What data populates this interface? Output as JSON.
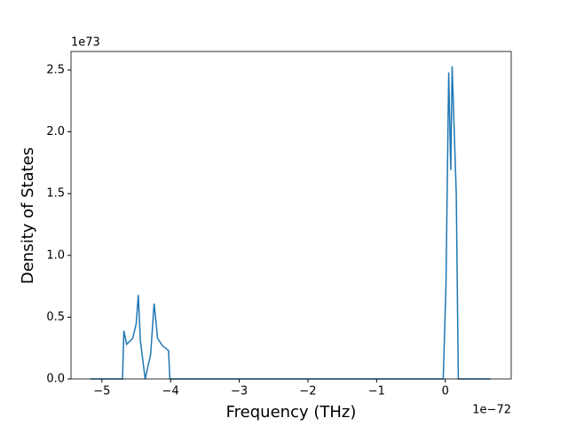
{
  "chart_data": {
    "type": "line",
    "xlabel": "Frequency (THz)",
    "ylabel": "Density of States",
    "x_offset_text": "1e−72",
    "y_offset_text": "1e73",
    "x": [
      -5.17,
      -4.7,
      -4.68,
      -4.64,
      -4.55,
      -4.5,
      -4.47,
      -4.44,
      -4.37,
      -4.29,
      -4.24,
      -4.21,
      -4.19,
      -4.12,
      -4.03,
      -4.01,
      -0.03,
      0.01,
      0.05,
      0.08,
      0.1,
      0.16,
      0.19,
      0.66
    ],
    "series": [
      {
        "color": "#1f77b4",
        "values": [
          0,
          0,
          0.39,
          0.28,
          0.33,
          0.45,
          0.68,
          0.31,
          0,
          0.2,
          0.61,
          0.45,
          0.33,
          0.27,
          0.23,
          0,
          0,
          0.75,
          2.48,
          1.69,
          2.53,
          1.5,
          0,
          0
        ]
      }
    ],
    "xlim": [
      -5.45,
      0.96
    ],
    "ylim": [
      0,
      2.65
    ],
    "xticks": [
      {
        "value": -5,
        "label": "−5"
      },
      {
        "value": -4,
        "label": "−4"
      },
      {
        "value": -3,
        "label": "−3"
      },
      {
        "value": -2,
        "label": "−2"
      },
      {
        "value": -1,
        "label": "−1"
      },
      0
    ],
    "yticks": [
      {
        "value": 0,
        "label": "0.0"
      },
      {
        "value": 0.5,
        "label": "0.5"
      },
      {
        "value": 1,
        "label": "1.0"
      },
      {
        "value": 1.5,
        "label": "1.5"
      },
      {
        "value": 2,
        "label": "2.0"
      },
      {
        "value": 2.5,
        "label": "2.5"
      }
    ],
    "grid": false
  }
}
